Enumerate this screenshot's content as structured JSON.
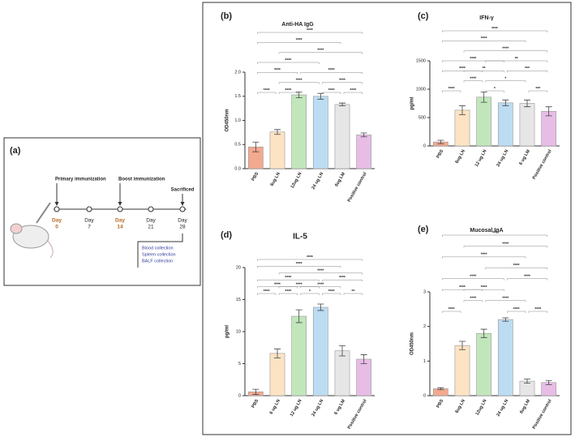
{
  "timeline": {
    "panel": "(a)",
    "events": [
      "Primary immunization",
      "Boost immunization",
      "Sacrificed"
    ],
    "days": [
      {
        "label": "Day",
        "num": "0"
      },
      {
        "label": "Day",
        "num": "7"
      },
      {
        "label": "Day",
        "num": "14"
      },
      {
        "label": "Day",
        "num": "21"
      },
      {
        "label": "Day",
        "num": "28"
      }
    ],
    "collections": [
      "Blood collection",
      "Spleen collection",
      "BALF collection"
    ]
  },
  "chart_data": [
    {
      "type": "bar",
      "panel": "(b)",
      "title": "Anti-HA IgG",
      "ylabel": "OD450nm",
      "categories": [
        "PBS",
        "6ug LN",
        "12ug LN",
        "24 ug LN",
        "6ug LM",
        "Positive control"
      ],
      "values": [
        0.45,
        0.76,
        1.53,
        1.5,
        1.33,
        0.7
      ],
      "errors": [
        0.1,
        0.05,
        0.06,
        0.06,
        0.03,
        0.04
      ],
      "colors": [
        "#f3a98f",
        "#fbe3c3",
        "#c2e6bb",
        "#bcdcf2",
        "#e6e6e6",
        "#e7bde6"
      ],
      "ylim": [
        0,
        2
      ],
      "yticks": [
        {
          "value": 0,
          "label": "0.0"
        },
        {
          "value": 0.5,
          "label": "0.5"
        },
        {
          "value": 1,
          "label": "1.0"
        },
        {
          "value": 1.5,
          "label": "1.5"
        },
        {
          "value": 2,
          "label": "2.0"
        }
      ],
      "significance": [
        [
          {
            "pair": [
              0,
              5
            ],
            "label": "****"
          }
        ],
        [
          {
            "pair": [
              0,
              4
            ],
            "label": "****"
          }
        ],
        [
          {
            "pair": [
              1,
              5
            ],
            "label": "****"
          }
        ],
        [
          {
            "pair": [
              0,
              3
            ],
            "label": "****"
          }
        ],
        [
          {
            "pair": [
              0,
              2
            ],
            "label": "****"
          },
          {
            "pair": [
              2,
              5
            ],
            "label": "****"
          }
        ],
        [
          {
            "pair": [
              1,
              3
            ],
            "label": "****"
          },
          {
            "pair": [
              3,
              5
            ],
            "label": "****"
          }
        ],
        [
          {
            "pair": [
              0,
              1
            ],
            "label": "****"
          },
          {
            "pair": [
              1,
              2
            ],
            "label": "****"
          },
          {
            "pair": [
              3,
              4
            ],
            "label": "****"
          },
          {
            "pair": [
              4,
              5
            ],
            "label": "****"
          }
        ]
      ]
    },
    {
      "type": "bar",
      "panel": "(c)",
      "title": "IFN-γ",
      "ylabel": "pg/ml",
      "categories": [
        "PBS",
        "6ug LN",
        "12 ug LN",
        "24 ug LN",
        "6 ug LM",
        "Positive control"
      ],
      "values": [
        70,
        630,
        860,
        760,
        750,
        610
      ],
      "errors": [
        30,
        80,
        90,
        50,
        60,
        80
      ],
      "colors": [
        "#f3a98f",
        "#fbe3c3",
        "#c2e6bb",
        "#bcdcf2",
        "#e6e6e6",
        "#e7bde6"
      ],
      "ylim": [
        0,
        1500
      ],
      "yticks": [
        0,
        500,
        1000,
        1500
      ],
      "significance": [
        [
          {
            "pair": [
              0,
              5
            ],
            "label": "****"
          }
        ],
        [
          {
            "pair": [
              0,
              4
            ],
            "label": "****"
          }
        ],
        [
          {
            "pair": [
              1,
              5
            ],
            "label": "****"
          }
        ],
        [
          {
            "pair": [
              0,
              3
            ],
            "label": "****"
          },
          {
            "pair": [
              2,
              5
            ],
            "label": "**"
          }
        ],
        [
          {
            "pair": [
              0,
              2
            ],
            "label": "****"
          },
          {
            "pair": [
              1,
              3
            ],
            "label": "**"
          },
          {
            "pair": [
              3,
              5
            ],
            "label": "***"
          }
        ],
        [
          {
            "pair": [
              1,
              2
            ],
            "label": "****"
          },
          {
            "pair": [
              2,
              4
            ],
            "label": "*"
          }
        ],
        [
          {
            "pair": [
              0,
              1
            ],
            "label": "****"
          },
          {
            "pair": [
              2,
              3
            ],
            "label": "*"
          },
          {
            "pair": [
              4,
              5
            ],
            "label": "***"
          }
        ]
      ]
    },
    {
      "type": "bar",
      "panel": "(d)",
      "title": "IL-5",
      "ylabel": "pg/ml",
      "categories": [
        "PBS",
        "6 ug LN",
        "12 ug LN",
        "24 ug LN",
        "6 ug LM",
        "Positive control"
      ],
      "values": [
        0.6,
        6.6,
        12.4,
        13.8,
        7.0,
        5.7
      ],
      "errors": [
        0.4,
        0.7,
        1.0,
        0.5,
        0.8,
        0.7
      ],
      "colors": [
        "#f3a98f",
        "#fbe3c3",
        "#c2e6bb",
        "#bcdcf2",
        "#e6e6e6",
        "#e7bde6"
      ],
      "ylim": [
        0,
        20
      ],
      "yticks": [
        0,
        5,
        10,
        15,
        20
      ],
      "significance": [
        [
          {
            "pair": [
              0,
              5
            ],
            "label": "****"
          }
        ],
        [
          {
            "pair": [
              0,
              4
            ],
            "label": "****"
          }
        ],
        [
          {
            "pair": [
              1,
              5
            ],
            "label": "****"
          }
        ],
        [
          {
            "pair": [
              0,
              3
            ],
            "label": "****"
          },
          {
            "pair": [
              3,
              5
            ],
            "label": "****"
          }
        ],
        [
          {
            "pair": [
              0,
              2
            ],
            "label": "****"
          },
          {
            "pair": [
              1,
              3
            ],
            "label": "****"
          },
          {
            "pair": [
              2,
              4
            ],
            "label": "****"
          }
        ],
        [
          {
            "pair": [
              0,
              1
            ],
            "label": "****"
          },
          {
            "pair": [
              1,
              2
            ],
            "label": "****"
          },
          {
            "pair": [
              2,
              3
            ],
            "label": "*"
          },
          {
            "pair": [
              3,
              4
            ],
            "label": "****"
          },
          {
            "pair": [
              4,
              5
            ],
            "label": "**"
          }
        ]
      ]
    },
    {
      "type": "bar",
      "panel": "(e)",
      "title": "Mucosal IgA",
      "ylabel": "OD450nm",
      "categories": [
        "PBS",
        "6ug LN",
        "12ug LN",
        "24 ug LN",
        "6ug LM",
        "Positive control"
      ],
      "values": [
        0.2,
        1.45,
        1.8,
        2.2,
        0.42,
        0.38
      ],
      "errors": [
        0.03,
        0.12,
        0.12,
        0.05,
        0.06,
        0.06
      ],
      "colors": [
        "#f3a98f",
        "#fbe3c3",
        "#c2e6bb",
        "#bcdcf2",
        "#e6e6e6",
        "#e7bde6"
      ],
      "ylim": [
        0,
        3
      ],
      "yticks": [
        0,
        1,
        2,
        3
      ],
      "significance": [
        [
          {
            "pair": [
              0,
              5
            ],
            "label": "***"
          }
        ],
        [
          {
            "pair": [
              1,
              5
            ],
            "label": "****"
          }
        ],
        [
          {
            "pair": [
              0,
              4
            ],
            "label": "****"
          }
        ],
        [
          {
            "pair": [
              2,
              5
            ],
            "label": "****"
          }
        ],
        [
          {
            "pair": [
              0,
              3
            ],
            "label": "****"
          },
          {
            "pair": [
              3,
              5
            ],
            "label": "****"
          }
        ],
        [
          {
            "pair": [
              0,
              2
            ],
            "label": "****"
          },
          {
            "pair": [
              1,
              3
            ],
            "label": "****"
          }
        ],
        [
          {
            "pair": [
              1,
              2
            ],
            "label": "****"
          },
          {
            "pair": [
              2,
              4
            ],
            "label": "****"
          }
        ],
        [
          {
            "pair": [
              0,
              1
            ],
            "label": "****"
          },
          {
            "pair": [
              3,
              4
            ],
            "label": "****"
          },
          {
            "pair": [
              4,
              5
            ],
            "label": "****"
          }
        ]
      ]
    }
  ]
}
